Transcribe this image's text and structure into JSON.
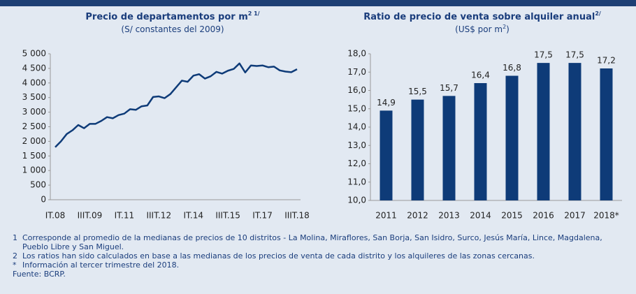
{
  "chart_data": [
    {
      "type": "line",
      "title": "Precio de departamentos por m",
      "title_sup": "2 1/",
      "subtitle": "(S/ constantes del 2009)",
      "categories": [
        "IT.08",
        null,
        null,
        null,
        null,
        null,
        "IIIT.09",
        null,
        null,
        null,
        null,
        null,
        "IT.11",
        null,
        null,
        null,
        null,
        null,
        "IIIT.12",
        null,
        null,
        null,
        null,
        null,
        "IT.14",
        null,
        null,
        null,
        null,
        null,
        "IIIT.15",
        null,
        null,
        null,
        null,
        null,
        "IT.17",
        null,
        null,
        null,
        null,
        null,
        "IIIT.18"
      ],
      "values": [
        1800,
        2000,
        2250,
        2380,
        2560,
        2450,
        2600,
        2600,
        2700,
        2830,
        2790,
        2900,
        2950,
        3100,
        3080,
        3200,
        3230,
        3520,
        3540,
        3480,
        3620,
        3850,
        4080,
        4040,
        4250,
        4300,
        4150,
        4230,
        4380,
        4320,
        4420,
        4480,
        4670,
        4360,
        4600,
        4580,
        4600,
        4540,
        4560,
        4430,
        4390,
        4370,
        4470
      ],
      "color": "#0e3b78",
      "ylim": [
        0,
        5000
      ],
      "yticks": [
        0,
        500,
        {
          "value": 1000,
          "label": "1 000"
        },
        {
          "value": 1500,
          "label": "1 500"
        },
        {
          "value": 2000,
          "label": "2 000"
        },
        {
          "value": 2500,
          "label": "2 500"
        },
        {
          "value": 3000,
          "label": "3 000"
        },
        {
          "value": 3500,
          "label": "3 500"
        },
        {
          "value": 4000,
          "label": "4 000"
        },
        {
          "value": 4500,
          "label": "4 500"
        },
        {
          "value": 5000,
          "label": "5 000"
        }
      ]
    },
    {
      "type": "bar",
      "title": "Ratio de precio de venta sobre alquiler anual",
      "title_sup": "2/",
      "subtitle": "(US$ por m",
      "subtitle_sup": "2",
      "subtitle_end": ")",
      "categories": [
        "2011",
        "2012",
        "2013",
        "2014",
        "2015",
        "2016",
        "2017",
        "2018*"
      ],
      "values": [
        14.9,
        15.5,
        15.7,
        16.4,
        16.8,
        17.5,
        17.5,
        17.2
      ],
      "value_labels": [
        "14,9",
        "15,5",
        "15,7",
        "16,4",
        "16,8",
        "17,5",
        "17,5",
        "17,2"
      ],
      "color": "#0e3b78",
      "ylim": [
        10,
        18
      ],
      "yticks": [
        {
          "value": 10,
          "label": "10,0"
        },
        {
          "value": 11,
          "label": "11,0"
        },
        {
          "value": 12,
          "label": "12,0"
        },
        {
          "value": 13,
          "label": "13,0"
        },
        {
          "value": 14,
          "label": "14,0"
        },
        {
          "value": 15,
          "label": "15,0"
        },
        {
          "value": 16,
          "label": "16,0"
        },
        {
          "value": 17,
          "label": "17,0"
        },
        {
          "value": 18,
          "label": "18,0"
        }
      ]
    }
  ],
  "footnotes": [
    {
      "mark": "1",
      "text": "Corresponde al promedio de la medianas de precios de 10 distritos - La Molina, Miraflores, San Borja, San Isidro, Surco, Jesús María, Lince, Magdalena, Pueblo Libre y San Miguel."
    },
    {
      "mark": "2",
      "text": "Los ratios han sido calculados en base a las medianas de los precios de venta de cada distrito y los alquileres de las zonas cercanas."
    },
    {
      "mark": "*",
      "text": "Información al tercer trimestre del 2018."
    }
  ],
  "source": "Fuente: BCRP."
}
